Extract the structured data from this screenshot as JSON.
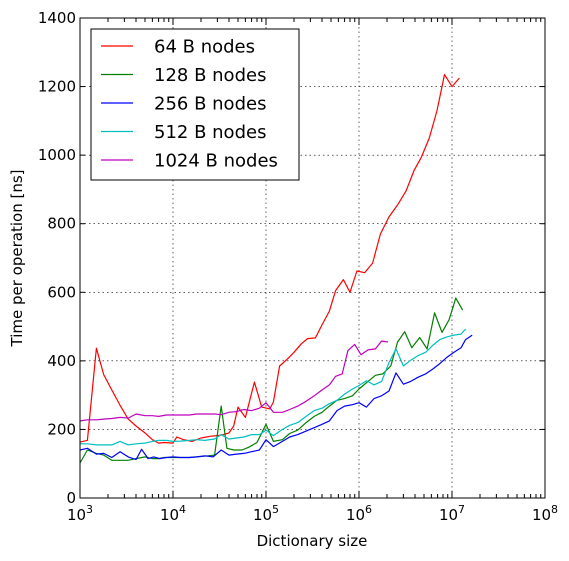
{
  "chart_data": {
    "type": "line",
    "title": "",
    "xlabel": "Dictionary size",
    "ylabel": "Time per operation [ns]",
    "xscale": "log",
    "xlim": [
      1000,
      100000000
    ],
    "ylim": [
      0,
      1400
    ],
    "grid": true,
    "legend_position": "top-left",
    "x_ticks": [
      {
        "value": 1000,
        "base": "10",
        "exp": "3"
      },
      {
        "value": 10000,
        "base": "10",
        "exp": "4"
      },
      {
        "value": 100000,
        "base": "10",
        "exp": "5"
      },
      {
        "value": 1000000,
        "base": "10",
        "exp": "6"
      },
      {
        "value": 10000000,
        "base": "10",
        "exp": "7"
      },
      {
        "value": 100000000,
        "base": "10",
        "exp": "8"
      }
    ],
    "y_ticks": [
      {
        "value": 0,
        "label": "0"
      },
      {
        "value": 200,
        "label": "200"
      },
      {
        "value": 400,
        "label": "400"
      },
      {
        "value": 600,
        "label": "600"
      },
      {
        "value": 800,
        "label": "800"
      },
      {
        "value": 1000,
        "label": "1000"
      },
      {
        "value": 1200,
        "label": "1200"
      },
      {
        "value": 1400,
        "label": "1400"
      }
    ],
    "series": [
      {
        "name": "64 B nodes",
        "color": "#ff0000",
        "points": [
          [
            1000,
            163
          ],
          [
            1200,
            168
          ],
          [
            1500,
            437
          ],
          [
            1800,
            360
          ],
          [
            2200,
            315
          ],
          [
            2700,
            270
          ],
          [
            3300,
            230
          ],
          [
            4000,
            210
          ],
          [
            5000,
            190
          ],
          [
            6000,
            170
          ],
          [
            7000,
            160
          ],
          [
            8000,
            162
          ],
          [
            10000,
            160
          ],
          [
            11000,
            178
          ],
          [
            13000,
            170
          ],
          [
            16000,
            165
          ],
          [
            20000,
            175
          ],
          [
            25000,
            180
          ],
          [
            30000,
            182
          ],
          [
            35000,
            185
          ],
          [
            40000,
            190
          ],
          [
            45000,
            210
          ],
          [
            50000,
            265
          ],
          [
            60000,
            235
          ],
          [
            75000,
            338
          ],
          [
            90000,
            265
          ],
          [
            110000,
            260
          ],
          [
            120000,
            280
          ],
          [
            140000,
            385
          ],
          [
            170000,
            405
          ],
          [
            200000,
            425
          ],
          [
            240000,
            450
          ],
          [
            280000,
            465
          ],
          [
            340000,
            467
          ],
          [
            400000,
            505
          ],
          [
            480000,
            545
          ],
          [
            560000,
            605
          ],
          [
            680000,
            637
          ],
          [
            800000,
            600
          ],
          [
            950000,
            662
          ],
          [
            1150000,
            657
          ],
          [
            1400000,
            685
          ],
          [
            1700000,
            770
          ],
          [
            2100000,
            820
          ],
          [
            2600000,
            855
          ],
          [
            3200000,
            895
          ],
          [
            3900000,
            955
          ],
          [
            4700000,
            995
          ],
          [
            5700000,
            1050
          ],
          [
            6900000,
            1130
          ],
          [
            8300000,
            1235
          ],
          [
            10000000,
            1200
          ],
          [
            12000000,
            1225
          ]
        ]
      },
      {
        "name": "128 B nodes",
        "color": "#008000",
        "points": [
          [
            1000,
            102
          ],
          [
            1200,
            140
          ],
          [
            1500,
            130
          ],
          [
            1800,
            125
          ],
          [
            2200,
            110
          ],
          [
            2700,
            110
          ],
          [
            3300,
            110
          ],
          [
            4000,
            115
          ],
          [
            5000,
            120
          ],
          [
            6000,
            115
          ],
          [
            7000,
            115
          ],
          [
            8000,
            118
          ],
          [
            10000,
            118
          ],
          [
            12000,
            118
          ],
          [
            15000,
            118
          ],
          [
            18000,
            120
          ],
          [
            22000,
            122
          ],
          [
            28000,
            125
          ],
          [
            33000,
            268
          ],
          [
            38000,
            145
          ],
          [
            45000,
            140
          ],
          [
            55000,
            140
          ],
          [
            65000,
            148
          ],
          [
            80000,
            162
          ],
          [
            100000,
            215
          ],
          [
            120000,
            165
          ],
          [
            150000,
            170
          ],
          [
            180000,
            188
          ],
          [
            220000,
            198
          ],
          [
            270000,
            220
          ],
          [
            330000,
            238
          ],
          [
            400000,
            250
          ],
          [
            480000,
            268
          ],
          [
            580000,
            285
          ],
          [
            700000,
            290
          ],
          [
            850000,
            298
          ],
          [
            1000000,
            318
          ],
          [
            1250000,
            340
          ],
          [
            1500000,
            358
          ],
          [
            1800000,
            362
          ],
          [
            2200000,
            385
          ],
          [
            2600000,
            455
          ],
          [
            3100000,
            485
          ],
          [
            3700000,
            438
          ],
          [
            4500000,
            468
          ],
          [
            5400000,
            435
          ],
          [
            6500000,
            540
          ],
          [
            7800000,
            483
          ],
          [
            9300000,
            520
          ],
          [
            11000000,
            583
          ],
          [
            13000000,
            548
          ]
        ]
      },
      {
        "name": "256 B nodes",
        "color": "#0000ff",
        "points": [
          [
            1000,
            140
          ],
          [
            1200,
            145
          ],
          [
            1500,
            128
          ],
          [
            1800,
            130
          ],
          [
            2200,
            118
          ],
          [
            2700,
            135
          ],
          [
            3300,
            120
          ],
          [
            4000,
            112
          ],
          [
            4600,
            142
          ],
          [
            5400,
            115
          ],
          [
            6200,
            120
          ],
          [
            7200,
            115
          ],
          [
            8500,
            118
          ],
          [
            10000,
            120
          ],
          [
            12000,
            118
          ],
          [
            15000,
            118
          ],
          [
            18000,
            120
          ],
          [
            22000,
            123
          ],
          [
            27000,
            120
          ],
          [
            33000,
            140
          ],
          [
            40000,
            125
          ],
          [
            48000,
            128
          ],
          [
            58000,
            130
          ],
          [
            70000,
            135
          ],
          [
            85000,
            140
          ],
          [
            100000,
            170
          ],
          [
            120000,
            150
          ],
          [
            150000,
            165
          ],
          [
            180000,
            178
          ],
          [
            220000,
            185
          ],
          [
            270000,
            195
          ],
          [
            330000,
            205
          ],
          [
            400000,
            215
          ],
          [
            480000,
            225
          ],
          [
            580000,
            255
          ],
          [
            700000,
            268
          ],
          [
            850000,
            272
          ],
          [
            1000000,
            278
          ],
          [
            1200000,
            265
          ],
          [
            1450000,
            290
          ],
          [
            1750000,
            298
          ],
          [
            2100000,
            312
          ],
          [
            2500000,
            365
          ],
          [
            3000000,
            332
          ],
          [
            3600000,
            340
          ],
          [
            4300000,
            352
          ],
          [
            5200000,
            362
          ],
          [
            6200000,
            376
          ],
          [
            7400000,
            392
          ],
          [
            8800000,
            410
          ],
          [
            10500000,
            425
          ],
          [
            12500000,
            438
          ],
          [
            14000000,
            462
          ],
          [
            16500000,
            475
          ]
        ]
      },
      {
        "name": "512 B nodes",
        "color": "#00bfbf",
        "points": [
          [
            1000,
            158
          ],
          [
            1200,
            158
          ],
          [
            1500,
            155
          ],
          [
            1800,
            155
          ],
          [
            2200,
            155
          ],
          [
            2700,
            165
          ],
          [
            3300,
            155
          ],
          [
            4000,
            158
          ],
          [
            5000,
            160
          ],
          [
            6000,
            165
          ],
          [
            7000,
            168
          ],
          [
            8500,
            168
          ],
          [
            10000,
            165
          ],
          [
            12000,
            166
          ],
          [
            15000,
            168
          ],
          [
            18000,
            170
          ],
          [
            22000,
            168
          ],
          [
            28000,
            172
          ],
          [
            33000,
            185
          ],
          [
            40000,
            172
          ],
          [
            48000,
            175
          ],
          [
            58000,
            178
          ],
          [
            70000,
            185
          ],
          [
            85000,
            185
          ],
          [
            100000,
            198
          ],
          [
            120000,
            182
          ],
          [
            150000,
            200
          ],
          [
            180000,
            212
          ],
          [
            220000,
            220
          ],
          [
            270000,
            238
          ],
          [
            330000,
            255
          ],
          [
            400000,
            262
          ],
          [
            480000,
            275
          ],
          [
            580000,
            285
          ],
          [
            700000,
            303
          ],
          [
            850000,
            318
          ],
          [
            1000000,
            328
          ],
          [
            1200000,
            342
          ],
          [
            1450000,
            330
          ],
          [
            1750000,
            340
          ],
          [
            2100000,
            395
          ],
          [
            2500000,
            435
          ],
          [
            3000000,
            385
          ],
          [
            3600000,
            402
          ],
          [
            4300000,
            415
          ],
          [
            5200000,
            425
          ],
          [
            6200000,
            445
          ],
          [
            7400000,
            462
          ],
          [
            8800000,
            470
          ],
          [
            10500000,
            475
          ],
          [
            12500000,
            478
          ],
          [
            14000000,
            493
          ]
        ]
      },
      {
        "name": "1024 B nodes",
        "color": "#bf00bf",
        "points": [
          [
            1000,
            225
          ],
          [
            1200,
            228
          ],
          [
            1500,
            228
          ],
          [
            1800,
            230
          ],
          [
            2200,
            232
          ],
          [
            2700,
            235
          ],
          [
            3300,
            233
          ],
          [
            4000,
            245
          ],
          [
            5000,
            240
          ],
          [
            6000,
            240
          ],
          [
            7000,
            238
          ],
          [
            8500,
            242
          ],
          [
            10000,
            242
          ],
          [
            12000,
            242
          ],
          [
            15000,
            242
          ],
          [
            18000,
            245
          ],
          [
            22000,
            245
          ],
          [
            28000,
            245
          ],
          [
            33000,
            243
          ],
          [
            40000,
            250
          ],
          [
            48000,
            252
          ],
          [
            58000,
            258
          ],
          [
            70000,
            255
          ],
          [
            85000,
            262
          ],
          [
            100000,
            278
          ],
          [
            120000,
            250
          ],
          [
            150000,
            250
          ],
          [
            180000,
            258
          ],
          [
            220000,
            268
          ],
          [
            270000,
            282
          ],
          [
            330000,
            298
          ],
          [
            400000,
            315
          ],
          [
            480000,
            330
          ],
          [
            560000,
            355
          ],
          [
            660000,
            362
          ],
          [
            760000,
            430
          ],
          [
            900000,
            448
          ],
          [
            1050000,
            418
          ],
          [
            1250000,
            432
          ],
          [
            1500000,
            435
          ],
          [
            1750000,
            458
          ],
          [
            2050000,
            455
          ]
        ]
      }
    ]
  }
}
